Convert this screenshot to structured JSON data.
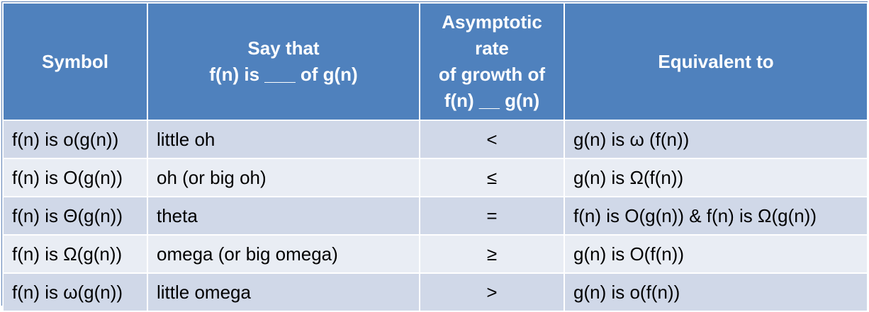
{
  "table": {
    "headers": [
      {
        "lines": [
          "Symbol"
        ]
      },
      {
        "lines": [
          "Say that",
          "f(n) is ___ of g(n)"
        ]
      },
      {
        "lines": [
          "Asymptotic",
          "rate",
          "of growth of",
          "f(n) __ g(n)"
        ]
      },
      {
        "lines": [
          "Equivalent to"
        ]
      }
    ],
    "rows": [
      {
        "symbol": "f(n) is o(g(n))",
        "say": "little oh",
        "rate": "<",
        "equivalent": "g(n) is ω (f(n))"
      },
      {
        "symbol": "f(n) is O(g(n))",
        "say": "oh  (or big oh)",
        "rate": "≤",
        "equivalent": "g(n) is Ω(f(n))"
      },
      {
        "symbol": "f(n) is Θ(g(n))",
        "say": "theta",
        "rate": "=",
        "equivalent": "f(n) is O(g(n))  &  f(n) is Ω(g(n))"
      },
      {
        "symbol": "f(n) is Ω(g(n))",
        "say": "omega  (or big omega)",
        "rate": "≥",
        "equivalent": "g(n) is O(f(n))"
      },
      {
        "symbol": "f(n) is ω(g(n))",
        "say": "little omega",
        "rate": ">",
        "equivalent": "g(n) is o(f(n))"
      }
    ]
  },
  "colors": {
    "header_bg": "#4f81bd",
    "row_dark": "#d0d8e8",
    "row_light": "#e9edf4"
  }
}
